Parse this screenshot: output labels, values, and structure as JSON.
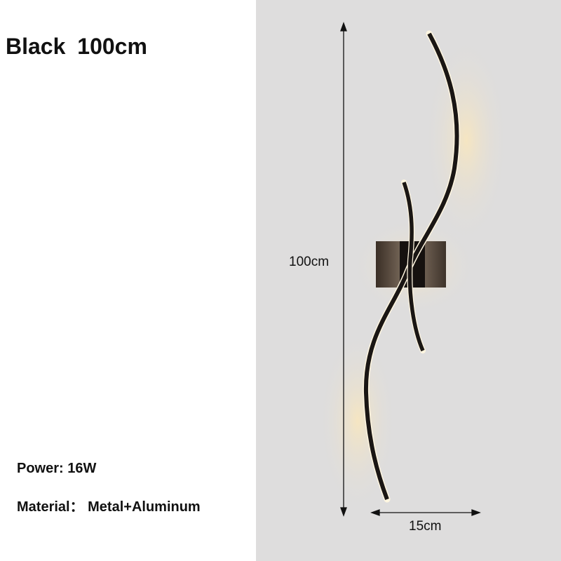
{
  "title": "Black  100cm",
  "specs": {
    "power": "Power:  16W",
    "material": "Material： Metal+Aluminum"
  },
  "dimensions": {
    "height": "100cm",
    "width": "15cm"
  },
  "colors": {
    "lamp": "#1a1614",
    "glow": "#f6e2b8",
    "wall": "#dedddd"
  }
}
